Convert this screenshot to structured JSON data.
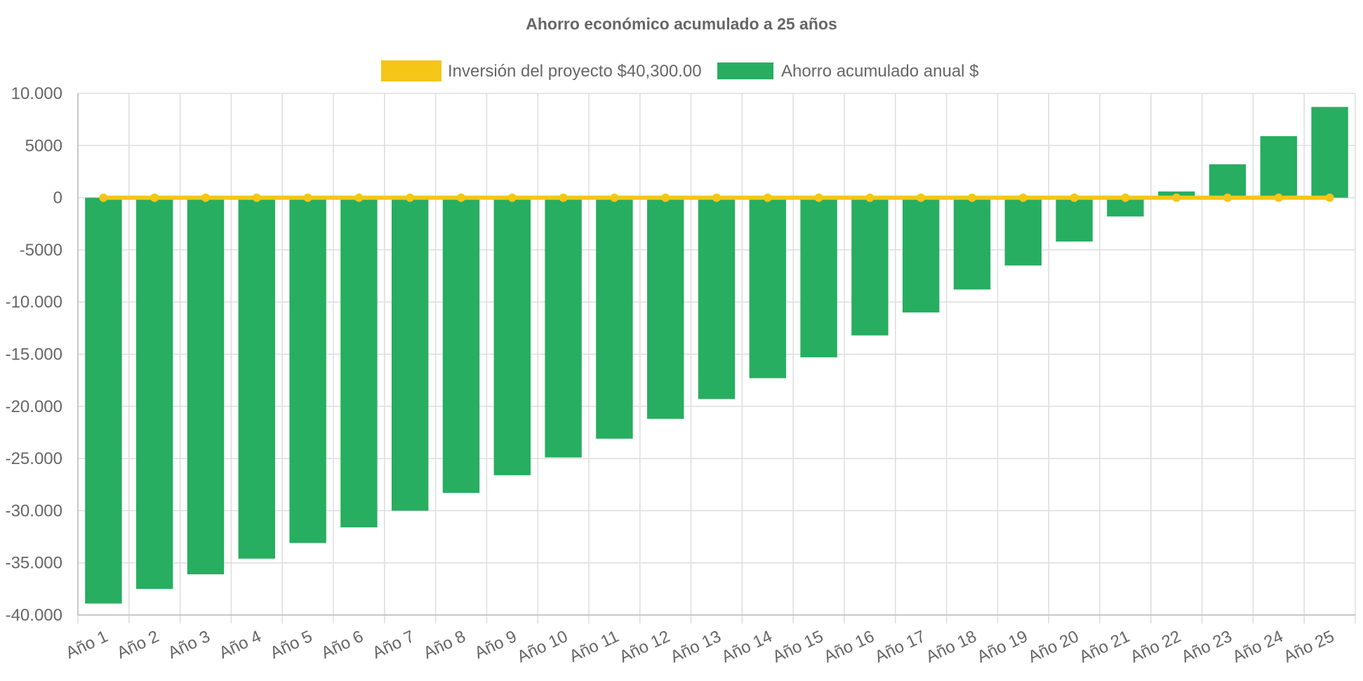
{
  "chart_data": {
    "type": "bar",
    "title": "Ahorro económico acumulado a 25 años",
    "xlabel": "",
    "ylabel": "",
    "categories": [
      "Año 1",
      "Año 2",
      "Año 3",
      "Año 4",
      "Año 5",
      "Año 6",
      "Año 7",
      "Año 8",
      "Año 9",
      "Año 10",
      "Año 11",
      "Año 12",
      "Año 13",
      "Año 14",
      "Año 15",
      "Año 16",
      "Año 17",
      "Año 18",
      "Año 19",
      "Año 20",
      "Año 21",
      "Año 22",
      "Año 23",
      "Año 24",
      "Año 25"
    ],
    "series": [
      {
        "name": "Inversión del proyecto $40,300.00",
        "type": "line",
        "color": "#f5c518",
        "values": [
          0,
          0,
          0,
          0,
          0,
          0,
          0,
          0,
          0,
          0,
          0,
          0,
          0,
          0,
          0,
          0,
          0,
          0,
          0,
          0,
          0,
          0,
          0,
          0,
          0
        ]
      },
      {
        "name": "Ahorro acumulado anual $",
        "type": "bar",
        "color": "#27ae60",
        "values": [
          -38900,
          -37500,
          -36100,
          -34600,
          -33100,
          -31600,
          -30000,
          -28300,
          -26600,
          -24900,
          -23100,
          -21200,
          -19300,
          -17300,
          -15300,
          -13200,
          -11000,
          -8800,
          -6500,
          -4200,
          -1800,
          600,
          3200,
          5900,
          8700
        ]
      }
    ],
    "ylim": [
      -40000,
      10000
    ],
    "yticks": [
      10000,
      5000,
      0,
      -5000,
      -10000,
      -15000,
      -20000,
      -25000,
      -30000,
      -35000,
      -40000
    ],
    "ytick_labels": [
      "10.000",
      "5000",
      "0",
      "-5000",
      "-10.000",
      "-15.000",
      "-20.000",
      "-25.000",
      "-30.000",
      "-35.000",
      "-40.000"
    ],
    "grid": true,
    "legend_position": "top-center"
  }
}
